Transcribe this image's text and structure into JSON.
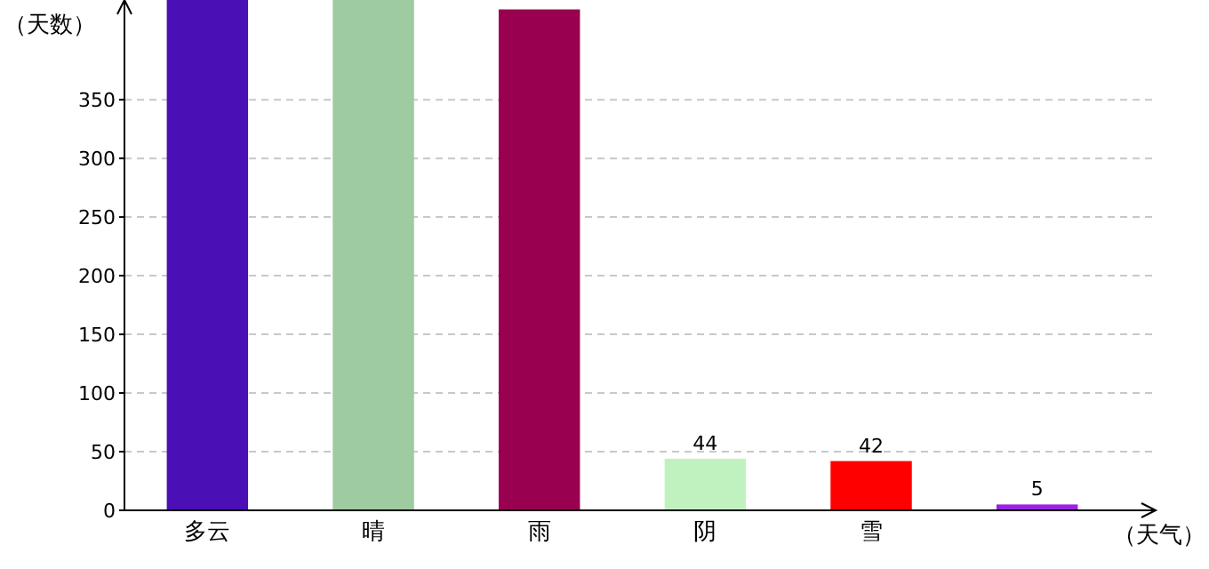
{
  "chart_data": {
    "type": "bar",
    "xlabel": "（天气）",
    "ylabel": "（天数）",
    "categories": [
      "多云",
      "晴",
      "雨",
      "阴",
      "雪",
      null
    ],
    "values": [
      435,
      435,
      427,
      44,
      42,
      5
    ],
    "colors": [
      "#4b10b5",
      "#9ecb9f",
      "#990050",
      "#c0f2c0",
      "#ff0000",
      "#9a22e0"
    ],
    "value_labels": [
      null,
      null,
      null,
      "44",
      "42",
      "5"
    ],
    "ylim": [
      0,
      435
    ],
    "yticks": [
      0,
      50,
      100,
      150,
      200,
      250,
      300,
      350
    ],
    "grid": "y"
  }
}
